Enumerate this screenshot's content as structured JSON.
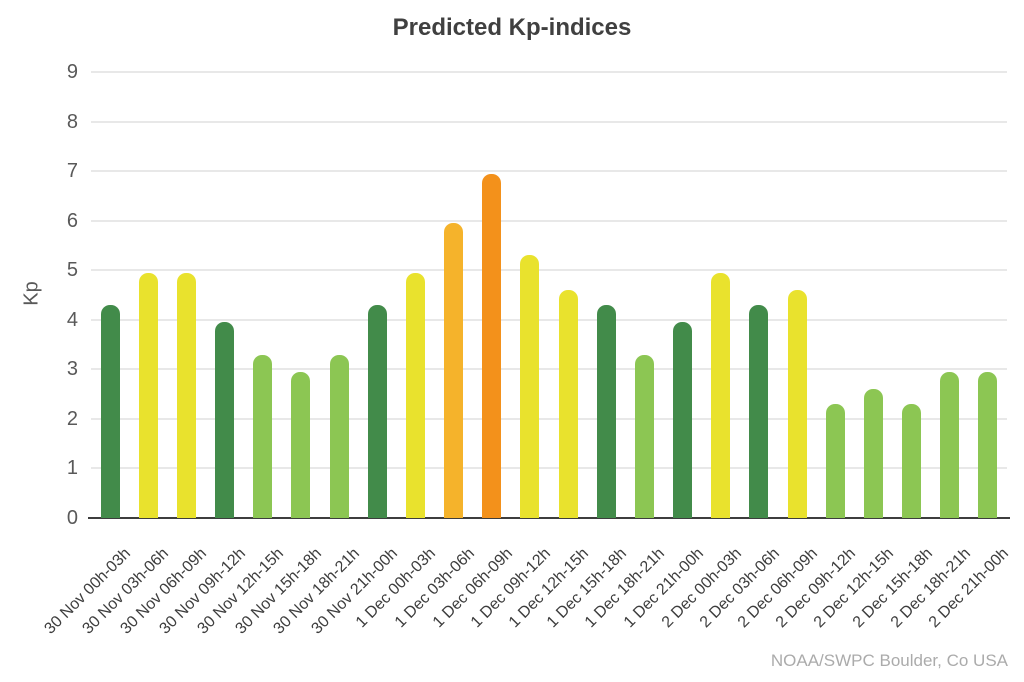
{
  "title": "Predicted Kp-indices",
  "y_axis": {
    "label": "Kp",
    "ticks": [
      "0",
      "1",
      "2",
      "3",
      "4",
      "5",
      "6",
      "7",
      "8",
      "9"
    ]
  },
  "attribution": "NOAA/SWPC Boulder, Co USA",
  "chart_data": {
    "type": "bar",
    "title": "Predicted Kp-indices",
    "xlabel": "",
    "ylabel": "Kp",
    "ylim": [
      0,
      9
    ],
    "grid": "horizontal",
    "legend_position": "none",
    "categories": [
      "30 Nov 00h-03h",
      "30 Nov 03h-06h",
      "30 Nov 06h-09h",
      "30 Nov 09h-12h",
      "30 Nov 12h-15h",
      "30 Nov 15h-18h",
      "30 Nov 18h-21h",
      "30 Nov 21h-00h",
      "1 Dec 00h-03h",
      "1 Dec 03h-06h",
      "1 Dec 06h-09h",
      "1 Dec 09h-12h",
      "1 Dec 12h-15h",
      "1 Dec 15h-18h",
      "1 Dec 18h-21h",
      "1 Dec 21h-00h",
      "2 Dec 00h-03h",
      "2 Dec 03h-06h",
      "2 Dec 06h-09h",
      "2 Dec 09h-12h",
      "2 Dec 12h-15h",
      "2 Dec 15h-18h",
      "2 Dec 18h-21h",
      "2 Dec 21h-00h"
    ],
    "values": [
      4.3,
      4.95,
      4.95,
      3.95,
      3.3,
      2.95,
      3.3,
      4.3,
      4.95,
      5.95,
      6.95,
      5.3,
      4.6,
      4.3,
      3.3,
      3.95,
      4.95,
      4.3,
      4.6,
      2.3,
      2.6,
      2.3,
      2.95,
      2.95
    ],
    "bar_color_keys": [
      "green_dark",
      "yellow",
      "yellow",
      "green_dark",
      "green_light",
      "green_light",
      "green_light",
      "green_dark",
      "yellow",
      "amber",
      "orange",
      "yellow",
      "yellow",
      "green_dark",
      "green_light",
      "green_dark",
      "yellow",
      "green_dark",
      "yellow",
      "green_light",
      "green_light",
      "green_light",
      "green_light",
      "green_light"
    ],
    "color_map": {
      "green_dark": "#428b4a",
      "green_light": "#8cc653",
      "yellow": "#e9e22d",
      "amber": "#f5b32b",
      "orange": "#f3911b"
    }
  }
}
